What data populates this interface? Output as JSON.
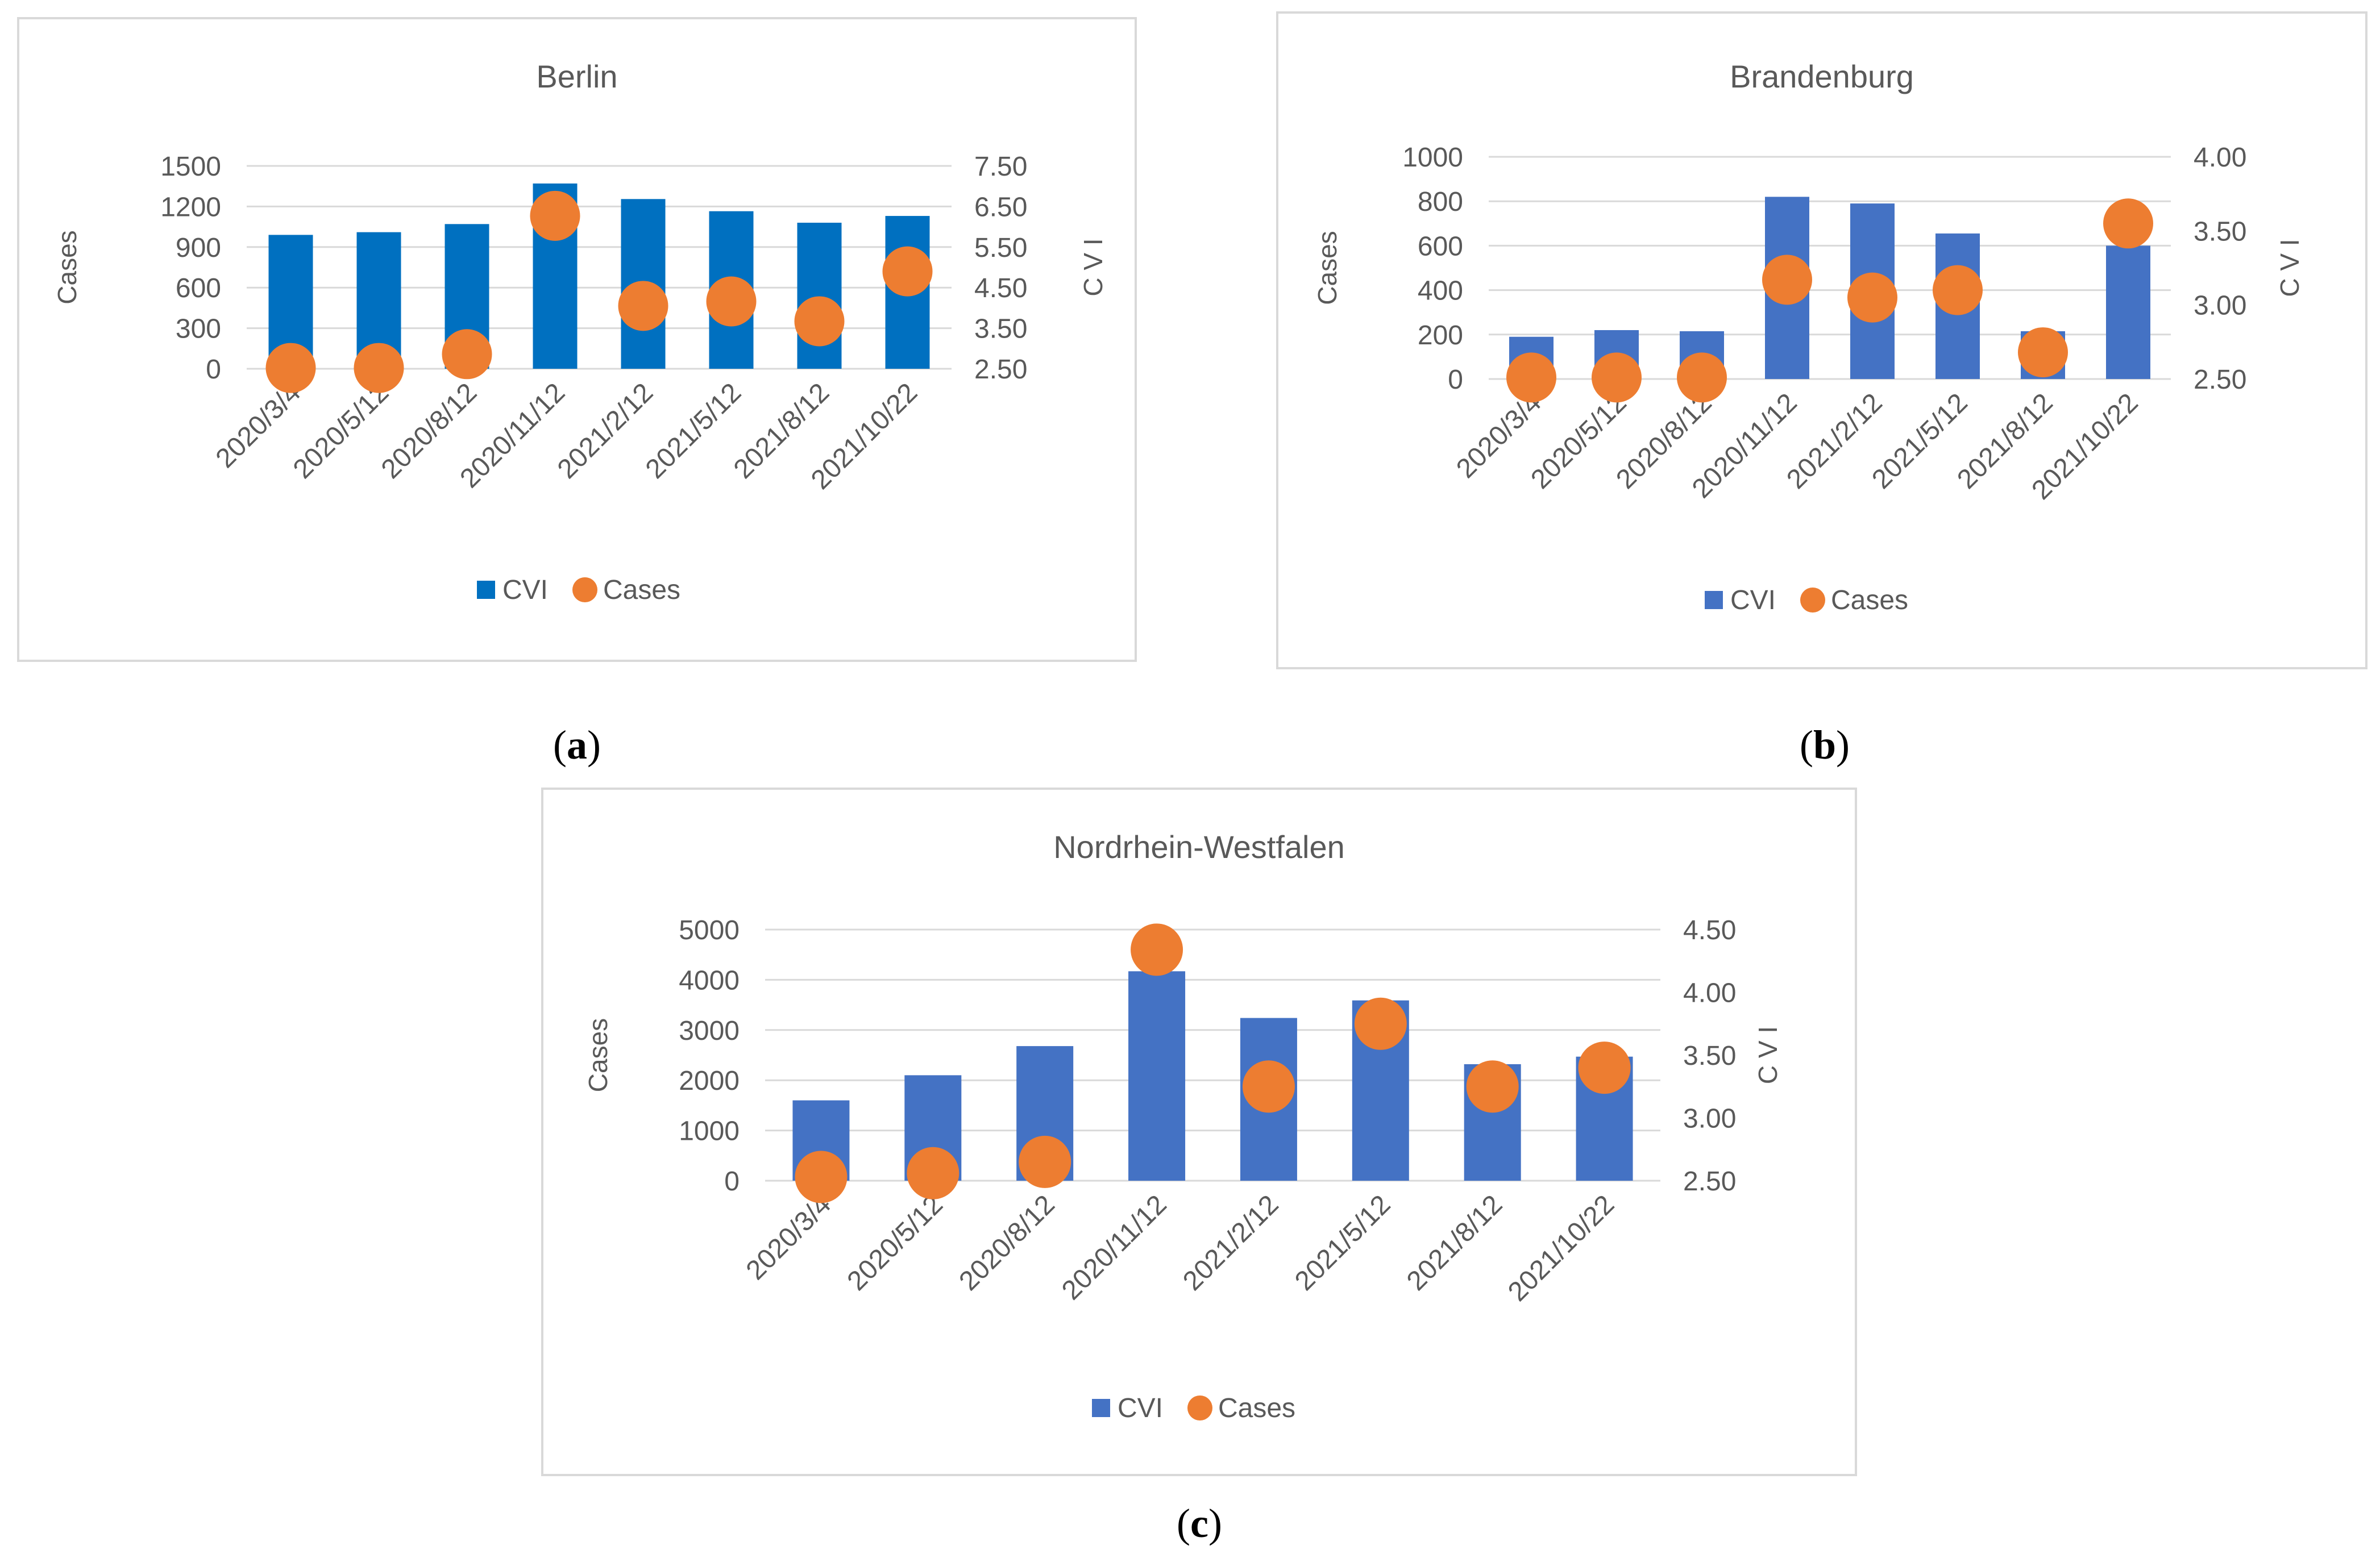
{
  "colors": {
    "bar_a": "#0070C0",
    "bar_bc": "#4472C4",
    "dot": "#ED7D31",
    "grid": "#d9d9d9",
    "text": "#595959"
  },
  "chart_data": [
    {
      "type": "bar",
      "title": "Berlin",
      "categories": [
        "2020/3/4",
        "2020/5/12",
        "2020/8/12",
        "2020/11/12",
        "2021/2/12",
        "2021/5/12",
        "2021/8/12",
        "2021/10/22"
      ],
      "series": [
        {
          "name": "CVI",
          "kind": "bar",
          "axis": "left",
          "values": [
            990,
            1010,
            1070,
            1370,
            1255,
            1165,
            1080,
            1130
          ]
        },
        {
          "name": "Cases",
          "kind": "scatter",
          "axis": "right",
          "values": [
            2.52,
            2.52,
            2.86,
            6.27,
            4.05,
            4.16,
            3.67,
            4.9
          ]
        }
      ],
      "ylabel": "Cases",
      "y2label": "C V I",
      "ylim": [
        0,
        1500
      ],
      "y2lim": [
        2.5,
        7.5
      ],
      "yticks": [
        "0",
        "300",
        "600",
        "900",
        "1200",
        "1500"
      ],
      "y2ticks": [
        "2.50",
        "3.50",
        "4.50",
        "5.50",
        "6.50",
        "7.50"
      ],
      "legend": [
        "CVI",
        "Cases"
      ]
    },
    {
      "type": "bar",
      "title": "Brandenburg",
      "categories": [
        "2020/3/4",
        "2020/5/12",
        "2020/8/12",
        "2020/11/12",
        "2021/2/12",
        "2021/5/12",
        "2021/8/12",
        "2021/10/22"
      ],
      "series": [
        {
          "name": "CVI",
          "kind": "bar",
          "axis": "left",
          "values": [
            190,
            220,
            215,
            820,
            790,
            655,
            215,
            600
          ]
        },
        {
          "name": "Cases",
          "kind": "scatter",
          "axis": "right",
          "values": [
            2.51,
            2.51,
            2.51,
            3.17,
            3.05,
            3.1,
            2.68,
            3.55
          ]
        }
      ],
      "ylabel": "Cases",
      "y2label": "C V I",
      "ylim": [
        0,
        1000
      ],
      "y2lim": [
        2.5,
        4.0
      ],
      "yticks": [
        "0",
        "200",
        "400",
        "600",
        "800",
        "1000"
      ],
      "y2ticks": [
        "2.50",
        "3.00",
        "3.50",
        "4.00"
      ],
      "legend": [
        "CVI",
        "Cases"
      ]
    },
    {
      "type": "bar",
      "title": "Nordrhein-Westfalen",
      "categories": [
        "2020/3/4",
        "2020/5/12",
        "2020/8/12",
        "2020/11/12",
        "2021/2/12",
        "2021/5/12",
        "2021/8/12",
        "2021/10/22"
      ],
      "series": [
        {
          "name": "CVI",
          "kind": "bar",
          "axis": "left",
          "values": [
            1600,
            2100,
            2680,
            4170,
            3240,
            3590,
            2320,
            2470
          ]
        },
        {
          "name": "Cases",
          "kind": "scatter",
          "axis": "right",
          "values": [
            2.53,
            2.56,
            2.65,
            4.34,
            3.25,
            3.75,
            3.25,
            3.4
          ]
        }
      ],
      "ylabel": "Cases",
      "y2label": "C V I",
      "ylim": [
        0,
        5000
      ],
      "y2lim": [
        2.5,
        4.5
      ],
      "yticks": [
        "0",
        "1000",
        "2000",
        "3000",
        "4000",
        "5000"
      ],
      "y2ticks": [
        "2.50",
        "3.00",
        "3.50",
        "4.00",
        "4.50"
      ],
      "legend": [
        "CVI",
        "Cases"
      ]
    }
  ],
  "captions": [
    "(a)",
    "(b)",
    "(c)"
  ],
  "caption_letters": [
    "a",
    "b",
    "c"
  ]
}
